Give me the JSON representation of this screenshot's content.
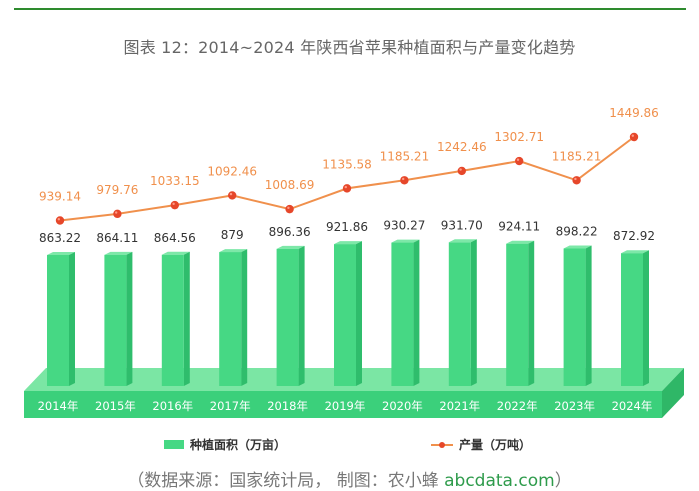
{
  "chart_data": {
    "type": "bar+line",
    "title": "图表 12：2014~2024 年陕西省苹果种植面积与产量变化趋势",
    "categories": [
      "2014年",
      "2015年",
      "2016年",
      "2017年",
      "2018年",
      "2019年",
      "2020年",
      "2021年",
      "2022年",
      "2023年",
      "2024年"
    ],
    "bar_series": {
      "name": "种植面积（万亩）",
      "values": [
        863.22,
        864.11,
        864.56,
        879,
        896.36,
        921.86,
        930.27,
        931.7,
        924.11,
        898.22,
        872.92
      ],
      "labels": [
        "863.22",
        "864.11",
        "864.56",
        "879",
        "896.36",
        "921.86",
        "930.27",
        "931.70",
        "924.11",
        "898.22",
        "872.92"
      ],
      "color": "#46d884"
    },
    "line_series": {
      "name": "产量（万吨）",
      "values": [
        939.14,
        979.76,
        1033.15,
        1092.46,
        1008.69,
        1135.58,
        1185.21,
        1242.46,
        1302.71,
        1185.21,
        1449.86
      ],
      "labels": [
        "939.14",
        "979.76",
        "1033.15",
        "1092.46",
        "1008.69",
        "1135.58",
        "1185.21",
        "1242.46",
        "1302.71",
        "1185.21",
        "1449.86"
      ],
      "color": "#f0904c",
      "marker_color": "#e6472a"
    },
    "legend": [
      "种植面积（万亩）",
      "产量（万吨）"
    ],
    "legend_position": "bottom"
  },
  "source": {
    "prefix": "（数据来源：国家统计局，  制图：农小蜂 ",
    "link": "abcdata.com",
    "suffix": "）"
  }
}
